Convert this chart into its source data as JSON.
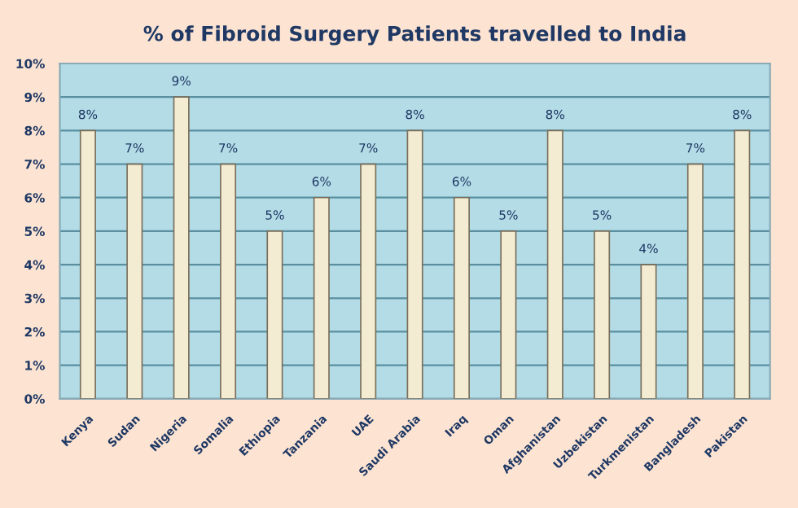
{
  "chart_data": {
    "type": "bar",
    "title": "% of Fibroid Surgery Patients travelled to India",
    "categories": [
      "Kenya",
      "Sudan",
      "Nigeria",
      "Somalia",
      "Ethiopia",
      "Tanzania",
      "UAE",
      "Saudi Arabia",
      "Iraq",
      "Oman",
      "Afghanistan",
      "Uzbekistan",
      "Turkmenistan",
      "Bangladesh",
      "Pakistan"
    ],
    "values": [
      8,
      7,
      9,
      7,
      5,
      6,
      7,
      8,
      6,
      5,
      8,
      5,
      4,
      7,
      8
    ],
    "value_labels": [
      "8%",
      "7%",
      "9%",
      "7%",
      "5%",
      "6%",
      "7%",
      "8%",
      "6%",
      "5%",
      "8%",
      "5%",
      "4%",
      "7%",
      "8%"
    ],
    "color": "#f3ecd2",
    "ylim": [
      0,
      10
    ],
    "yticks": [
      {
        "value": 0,
        "label": "0%"
      },
      {
        "value": 1,
        "label": "1%"
      },
      {
        "value": 2,
        "label": "2%"
      },
      {
        "value": 3,
        "label": "3%"
      },
      {
        "value": 4,
        "label": "4%"
      },
      {
        "value": 5,
        "label": "5%"
      },
      {
        "value": 6,
        "label": "6%"
      },
      {
        "value": 7,
        "label": "7%"
      },
      {
        "value": 8,
        "label": "8%"
      },
      {
        "value": 9,
        "label": "9%"
      },
      {
        "value": 10,
        "label": "10%"
      }
    ],
    "grid": "y"
  }
}
